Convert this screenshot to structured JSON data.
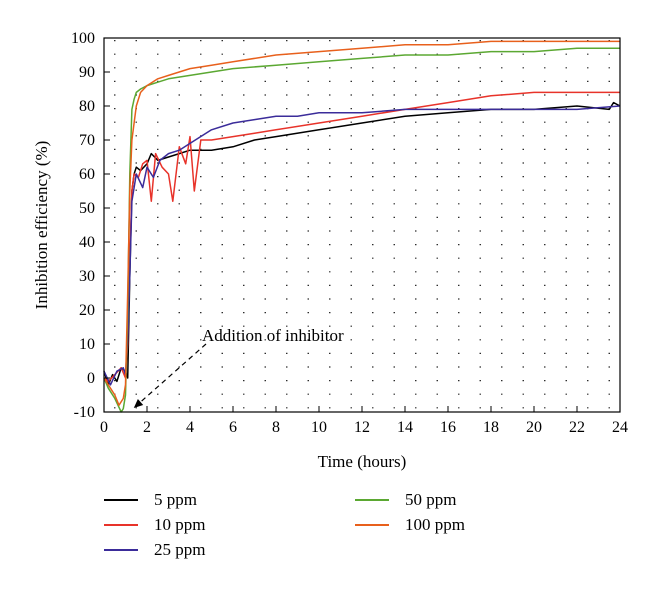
{
  "chart_data": {
    "type": "line",
    "title": "",
    "xlabel": "Time (hours)",
    "ylabel": "Inhibition efficiency (%)",
    "xlim": [
      0,
      24
    ],
    "ylim": [
      -10,
      100
    ],
    "xticks": [
      0,
      2,
      4,
      6,
      8,
      10,
      12,
      14,
      16,
      18,
      20,
      22,
      24
    ],
    "yticks": [
      -10,
      0,
      10,
      20,
      30,
      40,
      50,
      60,
      70,
      80,
      90,
      100
    ],
    "grid": "dotted",
    "legend_position": "below",
    "annotation": {
      "text": "Addition of inhibitor",
      "arrow_target": {
        "x": 1.2,
        "y": -10
      }
    },
    "series": [
      {
        "name": "5 ppm",
        "color": "#000000",
        "x": [
          0,
          0.2,
          0.4,
          0.6,
          0.8,
          1.0,
          1.1,
          1.2,
          1.3,
          1.4,
          1.5,
          1.7,
          2.0,
          2.2,
          2.5,
          3.0,
          3.5,
          4.0,
          5.0,
          6.0,
          7.0,
          8.0,
          10.0,
          12.0,
          14.0,
          16.0,
          18.0,
          20.0,
          22.0,
          23.5,
          23.7,
          24.0
        ],
        "y": [
          2,
          -2,
          1,
          -1,
          3,
          2,
          0,
          30,
          55,
          60,
          62,
          61,
          63,
          66,
          64,
          65,
          66,
          67,
          67,
          68,
          70,
          71,
          73,
          75,
          77,
          78,
          79,
          79,
          80,
          79,
          81,
          80
        ]
      },
      {
        "name": "10 ppm",
        "color": "#e8332a",
        "x": [
          0,
          0.2,
          0.5,
          0.8,
          1.0,
          1.1,
          1.2,
          1.3,
          1.4,
          1.6,
          1.8,
          2.0,
          2.2,
          2.4,
          2.7,
          3.0,
          3.2,
          3.5,
          3.8,
          4.0,
          4.2,
          4.5,
          5.0,
          6.0,
          7.0,
          8.0,
          10.0,
          12.0,
          14.0,
          16.0,
          18.0,
          20.0,
          22.0,
          24.0
        ],
        "y": [
          0,
          -1,
          1,
          3,
          0,
          10,
          35,
          55,
          60,
          59,
          63,
          64,
          52,
          66,
          62,
          60,
          52,
          68,
          63,
          71,
          55,
          70,
          70,
          71,
          72,
          73,
          75,
          77,
          79,
          81,
          83,
          84,
          84,
          84
        ]
      },
      {
        "name": "25 ppm",
        "color": "#3b2c9a",
        "x": [
          0,
          0.3,
          0.6,
          0.9,
          1.0,
          1.1,
          1.2,
          1.3,
          1.5,
          1.8,
          2.0,
          2.3,
          2.6,
          3.0,
          3.5,
          4.0,
          5.0,
          6.0,
          7.0,
          8.0,
          9.0,
          10.0,
          12.0,
          14.0,
          16.0,
          18.0,
          20.0,
          22.0,
          24.0
        ],
        "y": [
          2,
          -2,
          2,
          3,
          1,
          12,
          30,
          52,
          60,
          56,
          62,
          59,
          64,
          66,
          67,
          69,
          73,
          75,
          76,
          77,
          77,
          78,
          78,
          79,
          79,
          79,
          79,
          79,
          80
        ]
      },
      {
        "name": "50 ppm",
        "color": "#5ba832",
        "x": [
          0,
          0.2,
          0.5,
          0.8,
          0.9,
          1.0,
          1.1,
          1.2,
          1.3,
          1.4,
          1.5,
          1.7,
          2.0,
          2.5,
          3.0,
          4.0,
          5.0,
          6.0,
          8.0,
          10.0,
          12.0,
          14.0,
          16.0,
          18.0,
          20.0,
          22.0,
          24.0
        ],
        "y": [
          0,
          -3,
          -6,
          -10,
          -9,
          -5,
          20,
          60,
          79,
          82,
          84,
          85,
          86,
          87,
          88,
          89,
          90,
          91,
          92,
          93,
          94,
          95,
          95,
          96,
          96,
          97,
          97
        ]
      },
      {
        "name": "100 ppm",
        "color": "#e8601c",
        "x": [
          0,
          0.2,
          0.5,
          0.7,
          0.9,
          1.0,
          1.1,
          1.2,
          1.3,
          1.5,
          1.7,
          2.0,
          2.5,
          3.0,
          4.0,
          5.0,
          6.0,
          8.0,
          10.0,
          12.0,
          14.0,
          16.0,
          18.0,
          20.0,
          22.0,
          24.0
        ],
        "y": [
          0,
          -2,
          -5,
          -8,
          -6,
          -2,
          25,
          55,
          70,
          80,
          84,
          86,
          88,
          89,
          91,
          92,
          93,
          95,
          96,
          97,
          98,
          98,
          99,
          99,
          99,
          99
        ]
      }
    ]
  }
}
